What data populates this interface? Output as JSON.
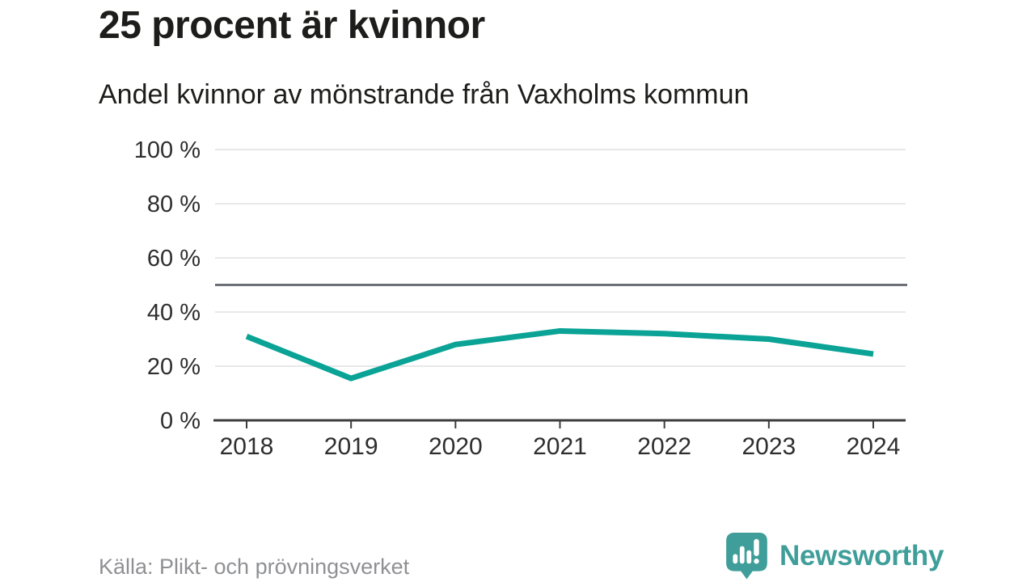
{
  "header": {
    "title": "25 procent är kvinnor",
    "subtitle": "Andel kvinnor av mönstrande från Vaxholms kommun"
  },
  "footer": {
    "source": "Källa: Plikt- och prövningsverket",
    "brand": "Newsworthy"
  },
  "colors": {
    "line": "#0aa396",
    "reference_line": "#6e7078",
    "gridline": "#e8e8e8",
    "axis": "#3c3c3c",
    "title_text": "#1d1d1b",
    "axis_text": "#2e2e2e",
    "source_text": "#8f9093",
    "brand_teal": "#3f9e99"
  },
  "chart_data": {
    "type": "line",
    "title": "25 procent är kvinnor",
    "subtitle": "Andel kvinnor av mönstrande från Vaxholms kommun",
    "categories": [
      "2018",
      "2019",
      "2020",
      "2021",
      "2022",
      "2023",
      "2024"
    ],
    "series": [
      {
        "name": "Andel kvinnor av mönstrande",
        "values": [
          31,
          15.5,
          28,
          33,
          32,
          30,
          24.5
        ]
      }
    ],
    "xlabel": "",
    "ylabel": "",
    "ylim": [
      0,
      100
    ],
    "yticks": [
      0,
      20,
      40,
      60,
      80,
      100
    ],
    "ytick_format": "{v} %",
    "reference_line": 50,
    "grid": true,
    "legend": "none"
  }
}
